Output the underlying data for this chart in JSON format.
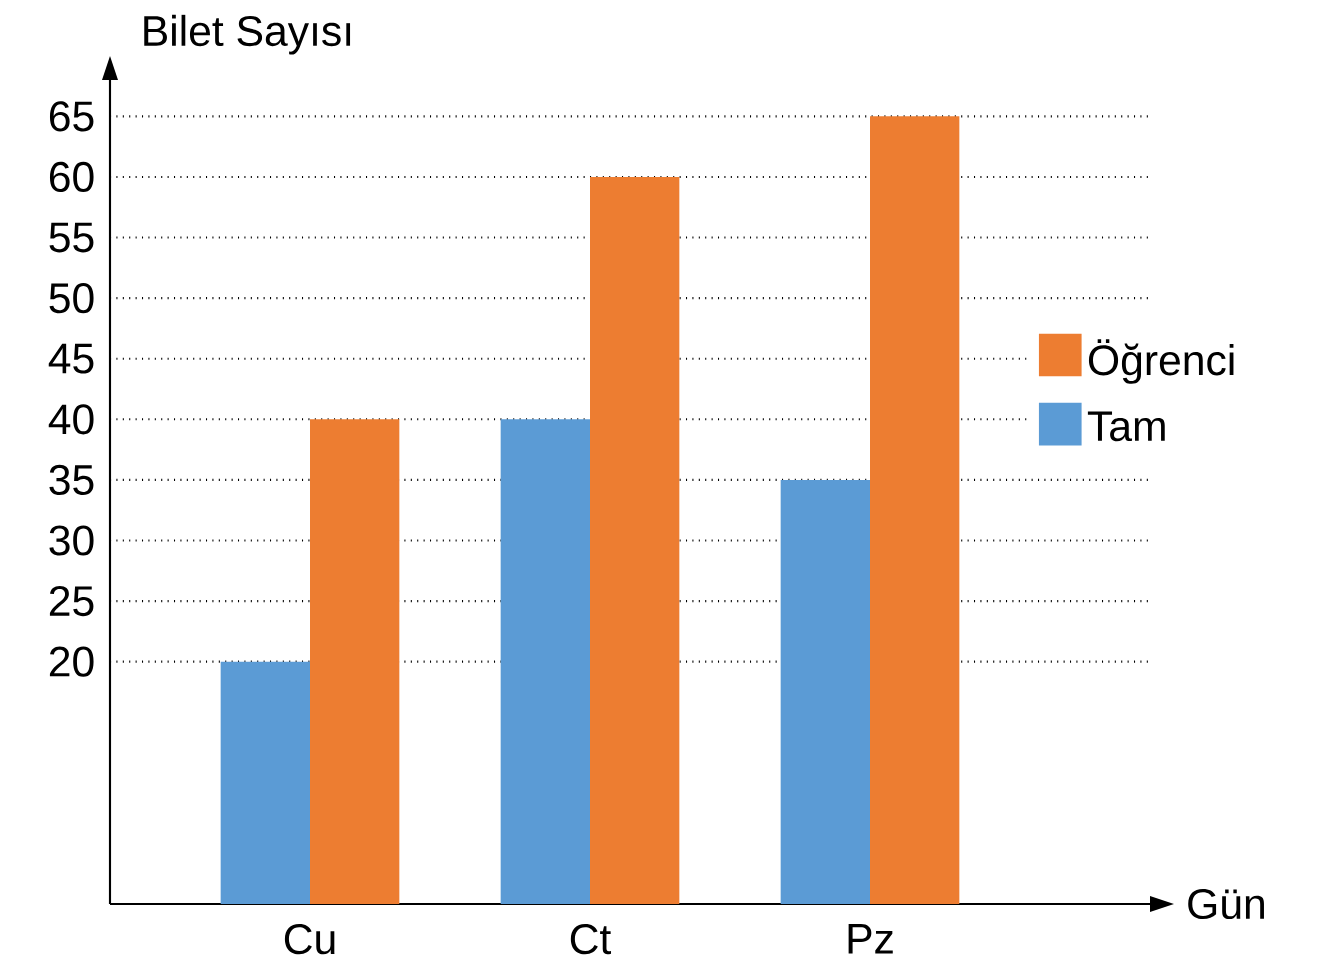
{
  "chart_data": {
    "type": "bar",
    "xlabel": "Gün",
    "ylabel": "Bilet Sayısı",
    "categories": [
      "Cu",
      "Ct",
      "Pz"
    ],
    "series": [
      {
        "name": "Tam",
        "color": "#5b9bd5",
        "values": [
          20,
          40,
          35
        ]
      },
      {
        "name": "Öğrenci",
        "color": "#ed7d31",
        "values": [
          40,
          60,
          65
        ]
      }
    ],
    "ylim": [
      0,
      68
    ],
    "yticks": [
      20,
      25,
      30,
      35,
      40,
      45,
      50,
      55,
      60,
      65
    ],
    "grid": "y",
    "legend": "right"
  }
}
